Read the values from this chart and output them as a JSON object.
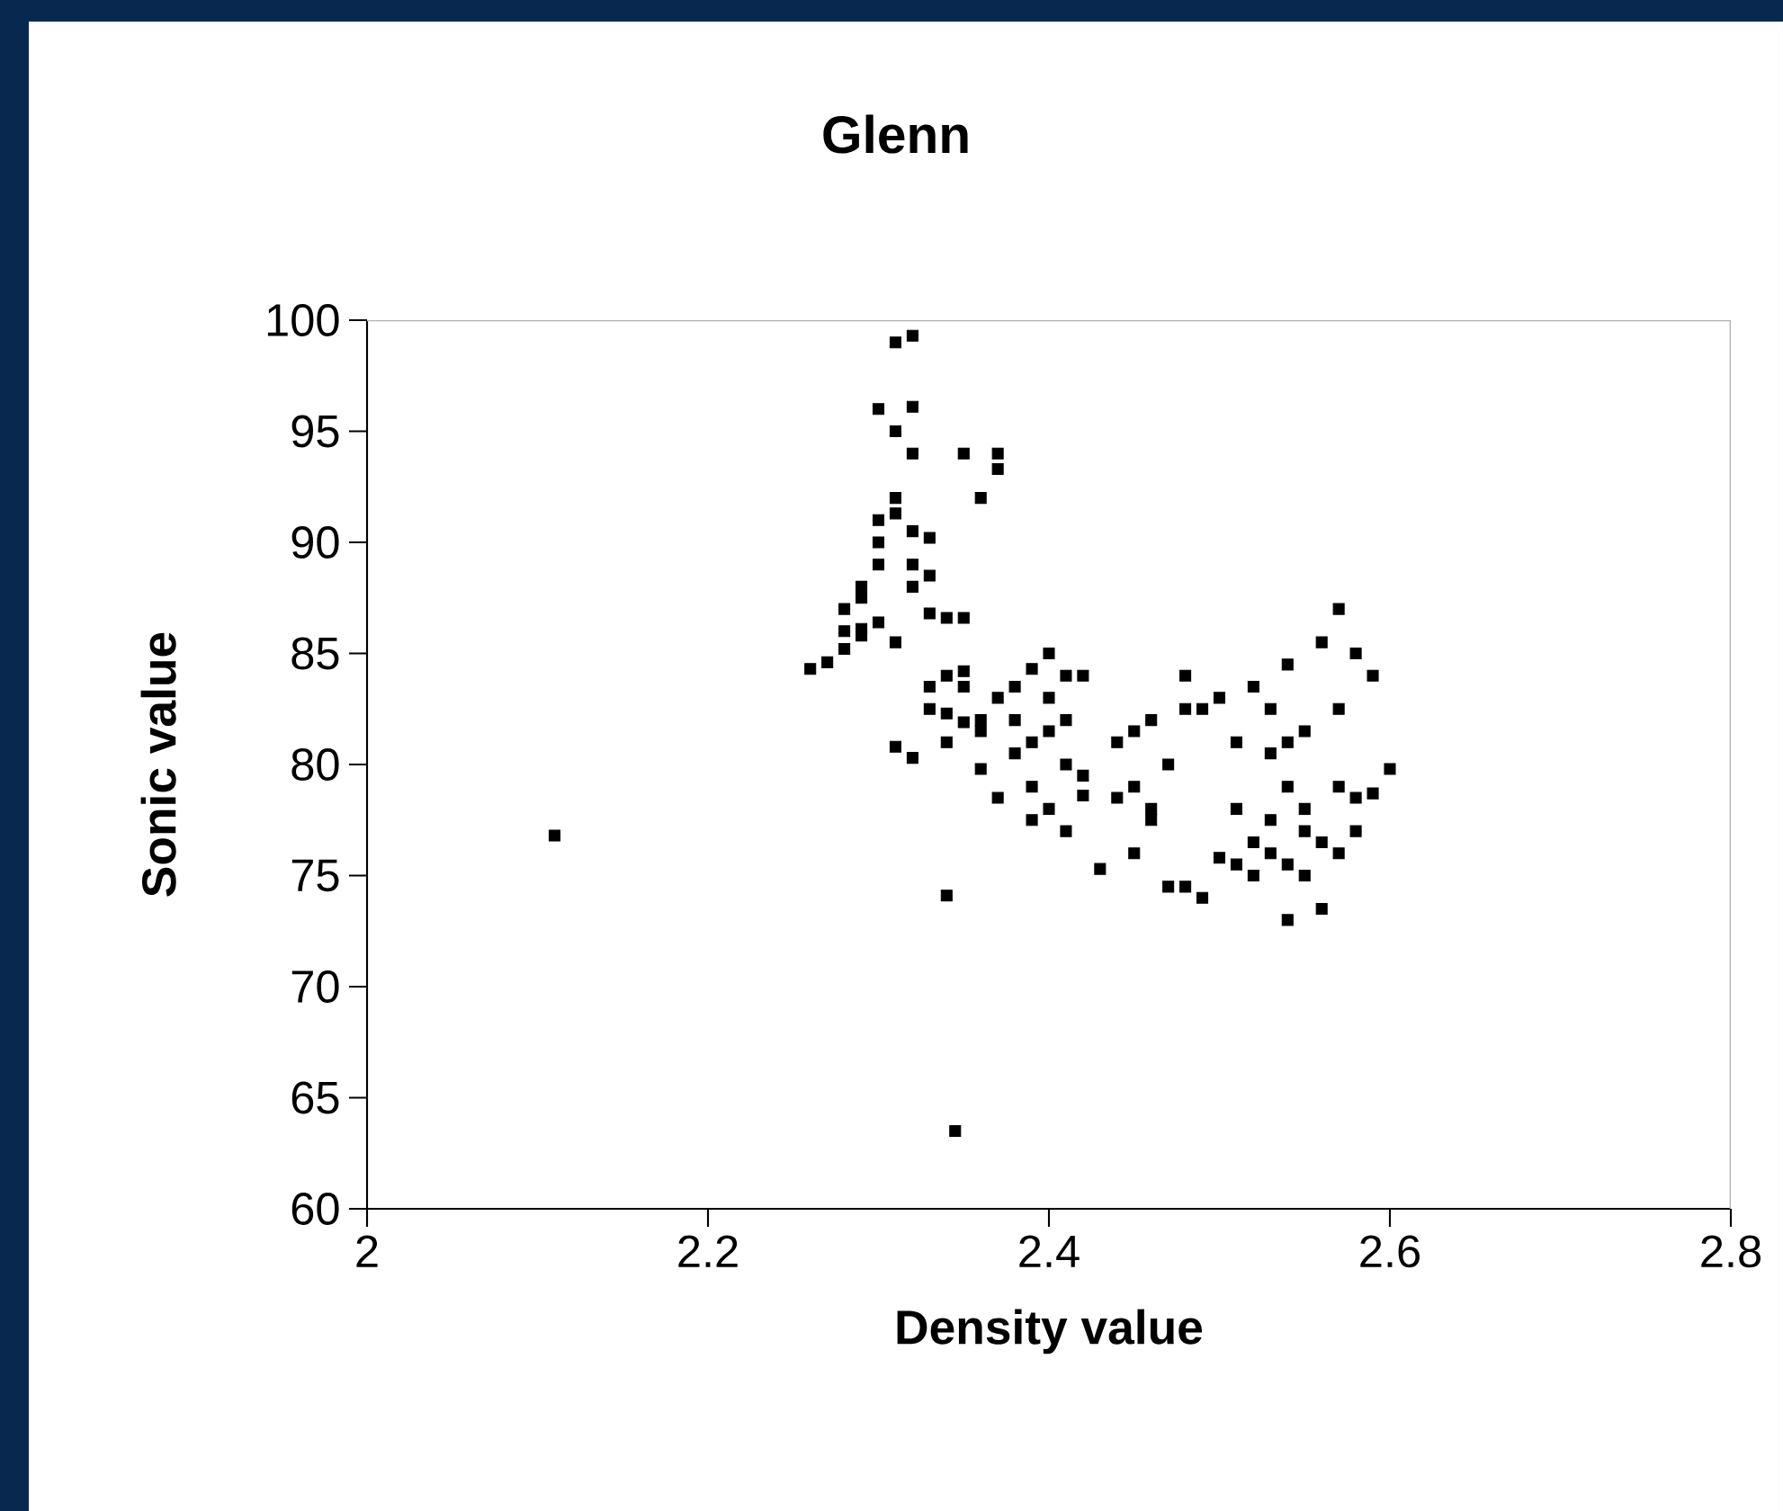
{
  "chart_data": {
    "type": "scatter",
    "title": "Glenn",
    "xlabel": "Density value",
    "ylabel": "Sonic value",
    "xlim": [
      2,
      2.8
    ],
    "ylim": [
      60,
      100
    ],
    "xticks": [
      2,
      2.2,
      2.4,
      2.6,
      2.8
    ],
    "yticks": [
      60,
      65,
      70,
      75,
      80,
      85,
      90,
      95,
      100
    ],
    "grid": false,
    "marker": "square",
    "series": [
      {
        "color": "#000000",
        "x": [
          2.11,
          2.345,
          2.34,
          2.26,
          2.27,
          2.28,
          2.28,
          2.29,
          2.28,
          2.29,
          2.29,
          2.3,
          2.3,
          2.3,
          2.31,
          2.3,
          2.31,
          2.31,
          2.32,
          2.32,
          2.32,
          2.31,
          2.32,
          2.32,
          2.33,
          2.33,
          2.3,
          2.29,
          2.31,
          2.32,
          2.33,
          2.34,
          2.35,
          2.35,
          2.37,
          2.37,
          2.36,
          2.31,
          2.32,
          2.33,
          2.33,
          2.34,
          2.34,
          2.35,
          2.35,
          2.34,
          2.35,
          2.36,
          2.36,
          2.36,
          2.37,
          2.37,
          2.38,
          2.38,
          2.38,
          2.39,
          2.39,
          2.39,
          2.4,
          2.4,
          2.4,
          2.4,
          2.39,
          2.41,
          2.41,
          2.42,
          2.42,
          2.41,
          2.41,
          2.42,
          2.43,
          2.44,
          2.44,
          2.45,
          2.45,
          2.45,
          2.46,
          2.46,
          2.46,
          2.47,
          2.47,
          2.48,
          2.48,
          2.48,
          2.49,
          2.49,
          2.5,
          2.5,
          2.51,
          2.51,
          2.51,
          2.52,
          2.52,
          2.52,
          2.53,
          2.53,
          2.53,
          2.54,
          2.54,
          2.54,
          2.54,
          2.55,
          2.55,
          2.55,
          2.55,
          2.56,
          2.56,
          2.56,
          2.57,
          2.57,
          2.57,
          2.58,
          2.58,
          2.58,
          2.59,
          2.59,
          2.6,
          2.57,
          2.54,
          2.53
        ],
        "values": [
          76.8,
          63.5,
          74.1,
          84.3,
          84.6,
          85.2,
          86,
          85.8,
          87,
          87.5,
          88,
          89,
          90,
          91,
          91.3,
          96,
          95,
          99,
          99.3,
          96.1,
          94,
          92,
          90.5,
          89,
          88.5,
          90.2,
          86.4,
          86.1,
          85.5,
          88,
          86.8,
          86.6,
          86.6,
          94,
          94,
          93.3,
          92,
          80.8,
          80.3,
          82.5,
          83.5,
          84,
          82.3,
          83.5,
          84.2,
          81,
          81.9,
          82,
          81.5,
          79.8,
          78.5,
          83,
          82,
          83.5,
          80.5,
          81,
          79,
          84.3,
          85,
          83,
          81.5,
          78,
          77.5,
          82,
          80,
          79.5,
          84,
          84,
          77,
          78.6,
          75.3,
          81,
          78.5,
          81.5,
          79,
          76,
          78,
          82,
          77.5,
          80,
          74.5,
          84,
          82.5,
          74.5,
          82.5,
          74,
          83,
          75.8,
          78,
          81,
          75.5,
          83.5,
          75,
          76.5,
          80.5,
          82.5,
          76,
          81,
          84.5,
          75.5,
          73,
          75,
          78,
          81.5,
          77,
          76.5,
          73.5,
          85.5,
          87,
          79,
          76,
          78.5,
          85,
          77,
          84,
          78.7,
          79.8,
          82.5,
          79,
          77.5
        ]
      }
    ]
  }
}
